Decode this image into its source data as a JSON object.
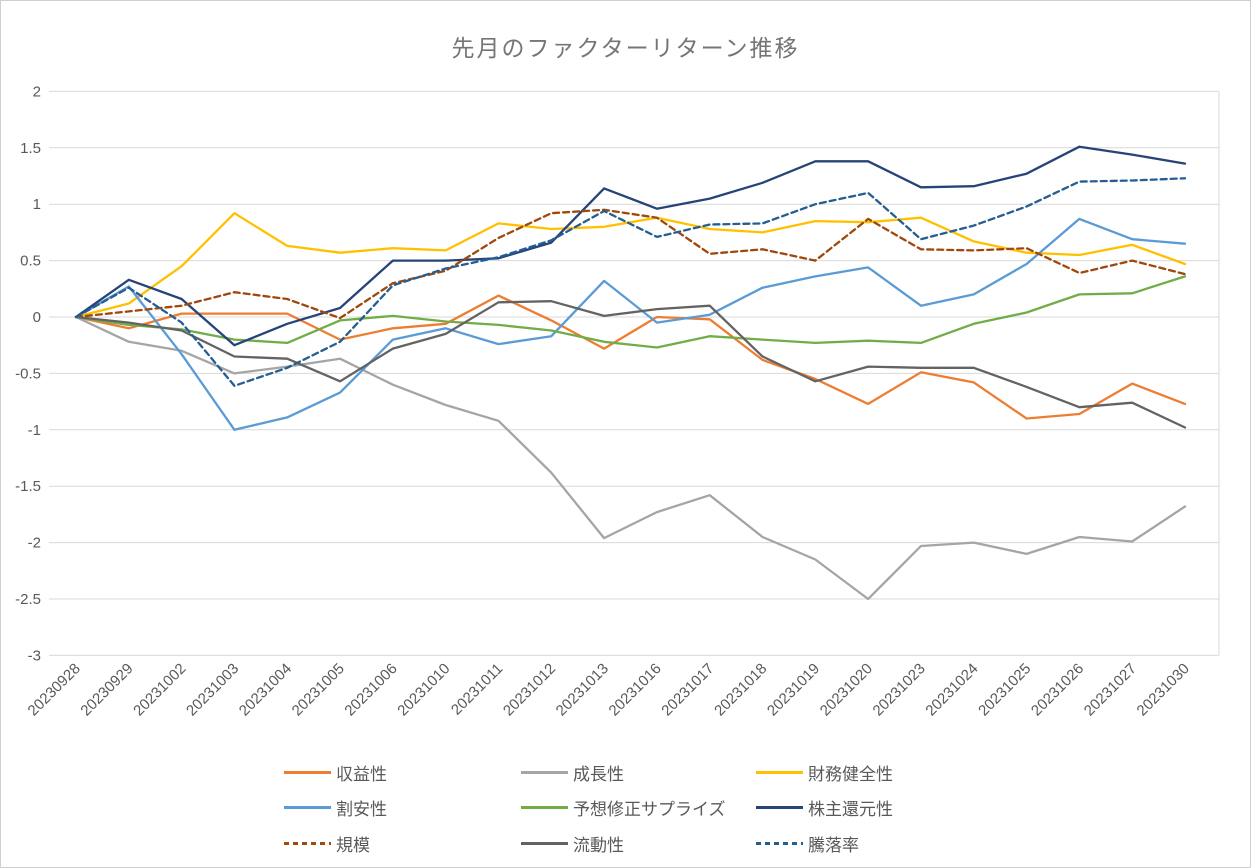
{
  "chart_data": {
    "type": "line",
    "title": "先月のファクターリターン推移",
    "xlabel": "",
    "ylabel": "",
    "ylim": [
      -3,
      2
    ],
    "ytick_step": 0.5,
    "yticks": [
      "2",
      "1.5",
      "1",
      "0.5",
      "0",
      "-0.5",
      "-1",
      "-1.5",
      "-2",
      "-2.5",
      "-3"
    ],
    "grid": true,
    "legend_position": "bottom",
    "x": [
      "20230928",
      "20230929",
      "20231002",
      "20231003",
      "20231004",
      "20231005",
      "20231006",
      "20231010",
      "20231011",
      "20231012",
      "20231013",
      "20231016",
      "20231017",
      "20231018",
      "20231019",
      "20231020",
      "20231023",
      "20231024",
      "20231025",
      "20231026",
      "20231027",
      "20231030"
    ],
    "series": [
      {
        "name": "収益性",
        "color": "#ED7D31",
        "dash": "solid",
        "values": [
          0,
          -0.1,
          0.03,
          0.03,
          0.03,
          -0.2,
          -0.1,
          -0.06,
          0.19,
          -0.03,
          -0.28,
          0.0,
          -0.02,
          -0.38,
          -0.55,
          -0.77,
          -0.49,
          -0.58,
          -0.9,
          -0.86,
          -0.59,
          -0.77
        ]
      },
      {
        "name": "成長性",
        "color": "#A5A5A5",
        "dash": "solid",
        "values": [
          0,
          -0.22,
          -0.3,
          -0.5,
          -0.44,
          -0.37,
          -0.6,
          -0.78,
          -0.92,
          -1.38,
          -1.96,
          -1.73,
          -1.58,
          -1.95,
          -2.15,
          -2.5,
          -2.03,
          -2.0,
          -2.1,
          -1.95,
          -1.99,
          -1.68
        ]
      },
      {
        "name": "財務健全性",
        "color": "#FFC000",
        "dash": "solid",
        "values": [
          0,
          0.12,
          0.45,
          0.92,
          0.63,
          0.57,
          0.61,
          0.59,
          0.83,
          0.78,
          0.8,
          0.88,
          0.78,
          0.75,
          0.85,
          0.84,
          0.88,
          0.67,
          0.57,
          0.55,
          0.64,
          0.47
        ]
      },
      {
        "name": "割安性",
        "color": "#5B9BD5",
        "dash": "solid",
        "values": [
          0,
          0.27,
          -0.33,
          -1.0,
          -0.89,
          -0.67,
          -0.2,
          -0.1,
          -0.24,
          -0.17,
          0.32,
          -0.05,
          0.02,
          0.26,
          0.36,
          0.44,
          0.1,
          0.2,
          0.47,
          0.87,
          0.69,
          0.65
        ]
      },
      {
        "name": "予想修正サプライズ",
        "color": "#70AD47",
        "dash": "solid",
        "values": [
          0,
          -0.07,
          -0.11,
          -0.2,
          -0.23,
          -0.03,
          0.01,
          -0.04,
          -0.07,
          -0.12,
          -0.22,
          -0.27,
          -0.17,
          -0.2,
          -0.23,
          -0.21,
          -0.23,
          -0.06,
          0.04,
          0.2,
          0.21,
          0.36
        ]
      },
      {
        "name": "株主還元性",
        "color": "#264478",
        "dash": "solid",
        "values": [
          0,
          0.33,
          0.16,
          -0.25,
          -0.06,
          0.08,
          0.5,
          0.5,
          0.52,
          0.66,
          1.14,
          0.96,
          1.05,
          1.19,
          1.38,
          1.38,
          1.15,
          1.16,
          1.27,
          1.51,
          1.44,
          1.36
        ]
      },
      {
        "name": "規模",
        "color": "#9E480E",
        "dash": "dashed",
        "values": [
          0,
          0.05,
          0.1,
          0.22,
          0.16,
          -0.01,
          0.3,
          0.41,
          0.7,
          0.92,
          0.95,
          0.88,
          0.56,
          0.6,
          0.5,
          0.87,
          0.6,
          0.59,
          0.61,
          0.39,
          0.5,
          0.38
        ]
      },
      {
        "name": "流動性",
        "color": "#636363",
        "dash": "solid",
        "values": [
          0,
          -0.05,
          -0.12,
          -0.35,
          -0.37,
          -0.57,
          -0.28,
          -0.15,
          0.13,
          0.14,
          0.01,
          0.07,
          0.1,
          -0.35,
          -0.57,
          -0.44,
          -0.45,
          -0.45,
          -0.62,
          -0.8,
          -0.76,
          -0.98
        ]
      },
      {
        "name": "騰落率",
        "color": "#255E91",
        "dash": "dashed",
        "values": [
          0,
          0.26,
          -0.05,
          -0.61,
          -0.45,
          -0.22,
          0.28,
          0.43,
          0.53,
          0.68,
          0.94,
          0.71,
          0.82,
          0.83,
          1.0,
          1.1,
          0.69,
          0.81,
          0.98,
          1.2,
          1.21,
          1.23
        ]
      }
    ]
  }
}
